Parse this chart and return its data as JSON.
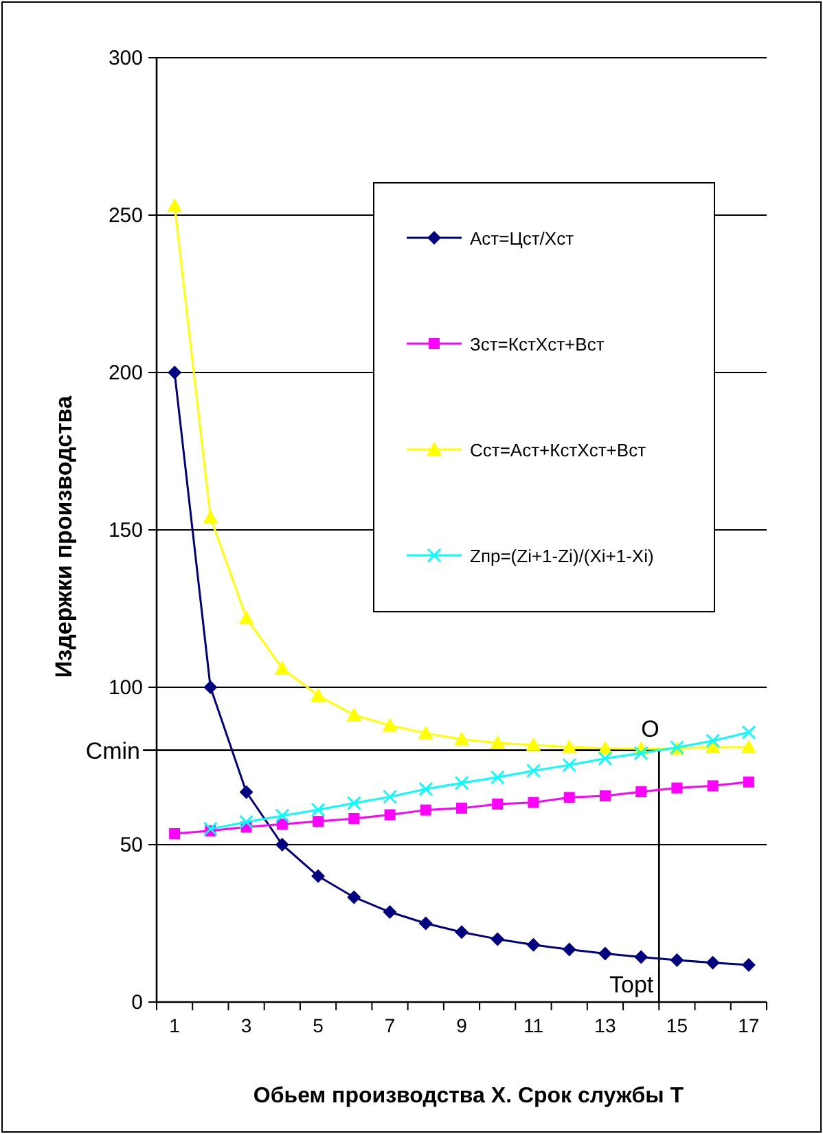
{
  "chart_data": {
    "type": "line",
    "xlabel": "Обьем производства Х. Срок службы Т",
    "ylabel": "Издержки производства",
    "x": [
      1,
      2,
      3,
      4,
      5,
      6,
      7,
      8,
      9,
      10,
      11,
      12,
      13,
      14,
      15,
      16,
      17
    ],
    "xlim": [
      0.5,
      17.5
    ],
    "xticks": [
      {
        "value": 0.5,
        "label": null
      },
      1,
      {
        "value": 1.5,
        "label": null
      },
      {
        "value": 2.5,
        "label": null
      },
      3,
      {
        "value": 3.5,
        "label": null
      },
      {
        "value": 4.5,
        "label": null
      },
      5,
      {
        "value": 5.5,
        "label": null
      },
      {
        "value": 6.5,
        "label": null
      },
      7,
      {
        "value": 7.5,
        "label": null
      },
      {
        "value": 8.5,
        "label": null
      },
      9,
      {
        "value": 9.5,
        "label": null
      },
      {
        "value": 10.5,
        "label": null
      },
      11,
      {
        "value": 11.5,
        "label": null
      },
      {
        "value": 12.5,
        "label": null
      },
      13,
      {
        "value": 13.5,
        "label": null
      },
      {
        "value": 14.5,
        "label": null
      },
      15,
      {
        "value": 15.5,
        "label": null
      },
      {
        "value": 16.5,
        "label": null
      },
      17,
      {
        "value": 17.5,
        "label": null
      }
    ],
    "ylim": [
      0,
      300
    ],
    "yticks": [
      0,
      50,
      100,
      150,
      200,
      250,
      300
    ],
    "grid": "y",
    "legend": "right",
    "line_style": "solid",
    "series": [
      {
        "name": "Аст=Цст/Хст",
        "color": "#000080",
        "marker": "diamond",
        "values": [
          200,
          100,
          66.7,
          50,
          40,
          33.3,
          28.6,
          25,
          22.2,
          20,
          18.2,
          16.7,
          15.4,
          14.3,
          13.3,
          12.5,
          11.8
        ]
      },
      {
        "name": "Зст=КстХст+Вст",
        "color": "#ff00ff",
        "marker": "square",
        "values": [
          53.5,
          54.4,
          55.6,
          56.5,
          57.4,
          58.3,
          59.5,
          61,
          61.6,
          62.9,
          63.4,
          65,
          65.5,
          66.8,
          68,
          68.7,
          69.9
        ]
      },
      {
        "name": "Сст=Аст+КстХст+Вст",
        "color": "#ffff00",
        "marker": "triangle",
        "values": [
          253,
          154,
          122,
          106,
          97.4,
          91.2,
          87.9,
          85.4,
          83.5,
          82.3,
          81.7,
          81,
          80.6,
          80.5,
          80.5,
          81,
          81
        ]
      },
      {
        "name": "Zпр=(Zi+1-Zi)/(Xi+1-Xi)",
        "color": "#00ffff",
        "marker": "cross",
        "values": [
          null,
          55,
          57.2,
          59.2,
          61.1,
          63.2,
          65.2,
          67.7,
          69.6,
          71.4,
          73.5,
          75.3,
          77.4,
          79.1,
          80.9,
          83,
          85.7
        ]
      }
    ],
    "ref_lines": [
      {
        "axis": "y",
        "value": 80,
        "label": "Cmin",
        "color": "#000000"
      },
      {
        "axis": "x",
        "value": 14.5,
        "label": "Topt",
        "color": "#000000"
      }
    ],
    "annotations": [
      {
        "text": "O",
        "x": 14.5,
        "y": 80
      }
    ]
  }
}
